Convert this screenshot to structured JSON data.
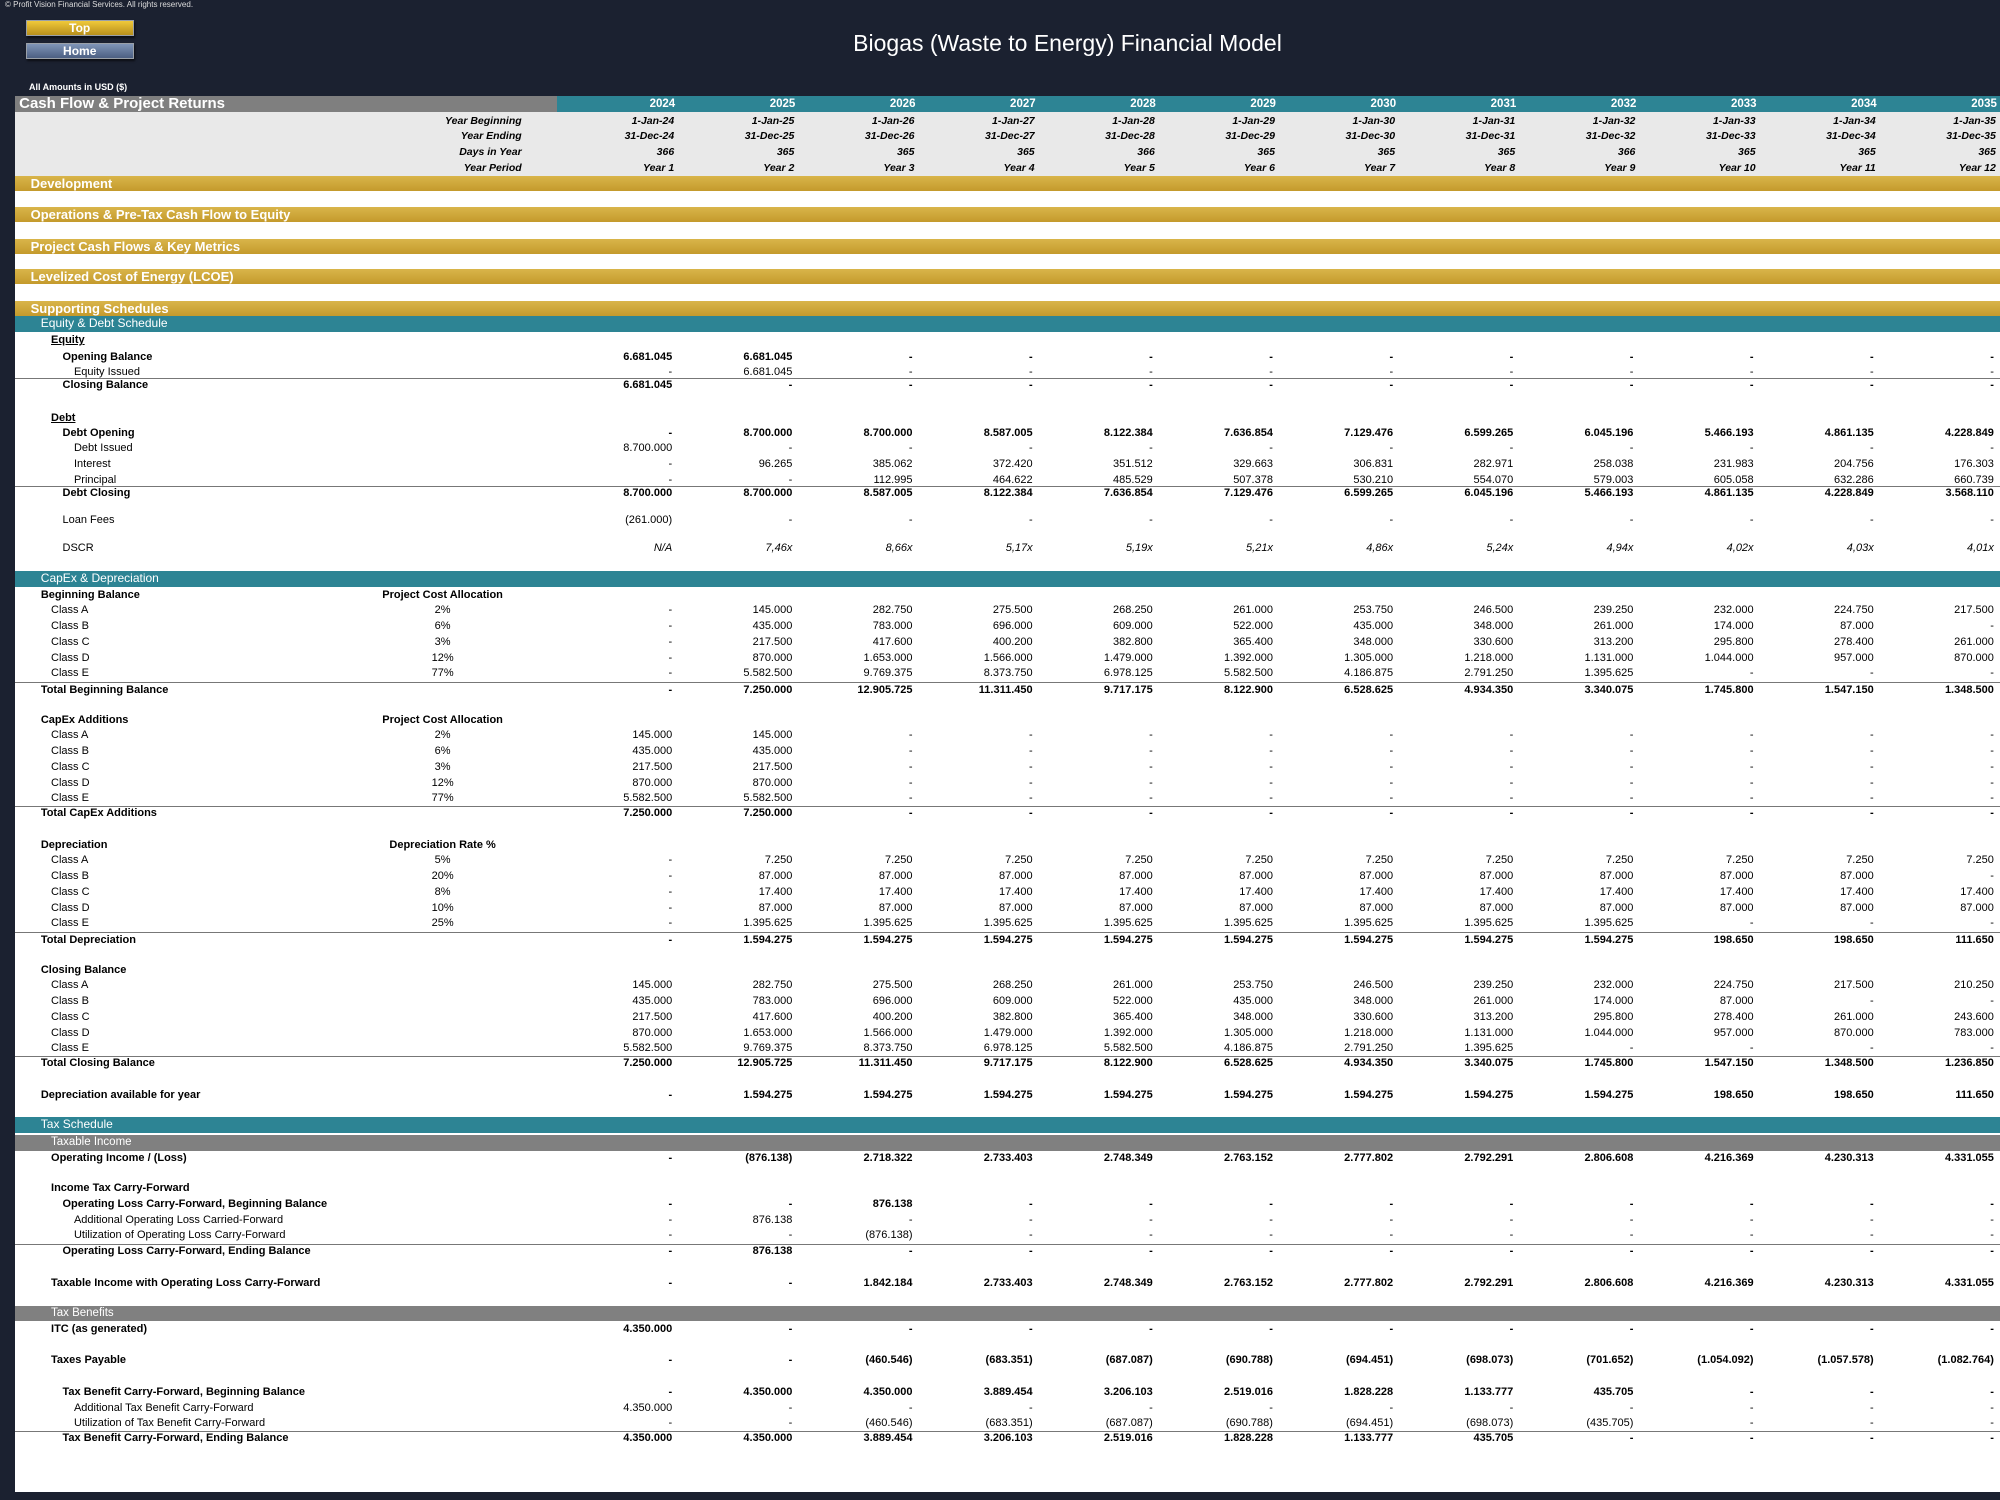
{
  "header": {
    "copyright": "© Profit Vision Financial Services. All rights reserved.",
    "buttons": [
      "Top",
      "Home"
    ],
    "title": "Biogas (Waste to Energy) Financial Model",
    "units": "All Amounts in USD ($)"
  },
  "table": {
    "title": "Cash Flow & Project Returns",
    "years": [
      "2024",
      "2025",
      "2026",
      "2027",
      "2028",
      "2029",
      "2030",
      "2031",
      "2032",
      "2033",
      "2034",
      "2035"
    ],
    "timeline": [
      {
        "label": "Year Beginning",
        "values": [
          "1-Jan-24",
          "1-Jan-25",
          "1-Jan-26",
          "1-Jan-27",
          "1-Jan-28",
          "1-Jan-29",
          "1-Jan-30",
          "1-Jan-31",
          "1-Jan-32",
          "1-Jan-33",
          "1-Jan-34",
          "1-Jan-35"
        ]
      },
      {
        "label": "Year Ending",
        "values": [
          "31-Dec-24",
          "31-Dec-25",
          "31-Dec-26",
          "31-Dec-27",
          "31-Dec-28",
          "31-Dec-29",
          "31-Dec-30",
          "31-Dec-31",
          "31-Dec-32",
          "31-Dec-33",
          "31-Dec-34",
          "31-Dec-35"
        ]
      },
      {
        "label": "Days in Year",
        "values": [
          "366",
          "365",
          "365",
          "365",
          "366",
          "365",
          "365",
          "365",
          "366",
          "365",
          "365",
          "365"
        ]
      },
      {
        "label": "Year Period",
        "values": [
          "Year 1",
          "Year 2",
          "Year 3",
          "Year 4",
          "Year 5",
          "Year 6",
          "Year 7",
          "Year 8",
          "Year 9",
          "Year 10",
          "Year 11",
          "Year 12"
        ]
      }
    ],
    "rows": [
      {
        "section": "Development"
      },
      {
        "section": "Operations & Pre-Tax Cash Flow to Equity"
      },
      {
        "section": "Project Cash Flows & Key Metrics"
      },
      {
        "section": "Levelized Cost of Energy (LCOE)"
      },
      {
        "section": "Supporting Schedules"
      },
      {
        "schedule": "Equity & Debt Schedule"
      },
      {
        "label": "Equity"
      },
      {
        "label": "Opening Balance",
        "values": [
          "6.681.045",
          "6.681.045",
          "-",
          "-",
          "-",
          "-",
          "-",
          "-",
          "-",
          "-",
          "-",
          "-"
        ]
      },
      {
        "label": "Equity Issued",
        "values": [
          "-",
          "6.681.045",
          "-",
          "-",
          "-",
          "-",
          "-",
          "-",
          "-",
          "-",
          "-",
          "-"
        ]
      },
      {
        "label": "Closing Balance",
        "values": [
          "6.681.045",
          "-",
          "-",
          "-",
          "-",
          "-",
          "-",
          "-",
          "-",
          "-",
          "-",
          "-"
        ]
      },
      {
        "label": "Debt"
      },
      {
        "label": "Debt Opening",
        "values": [
          "-",
          "8.700.000",
          "8.700.000",
          "8.587.005",
          "8.122.384",
          "7.636.854",
          "7.129.476",
          "6.599.265",
          "6.045.196",
          "5.466.193",
          "4.861.135",
          "4.228.849"
        ]
      },
      {
        "label": "Debt Issued",
        "values": [
          "8.700.000",
          "-",
          "-",
          "-",
          "-",
          "-",
          "-",
          "-",
          "-",
          "-",
          "-",
          "-"
        ]
      },
      {
        "label": "Interest",
        "values": [
          "-",
          "96.265",
          "385.062",
          "372.420",
          "351.512",
          "329.663",
          "306.831",
          "282.971",
          "258.038",
          "231.983",
          "204.756",
          "176.303"
        ]
      },
      {
        "label": "Principal",
        "values": [
          "-",
          "-",
          "112.995",
          "464.622",
          "485.529",
          "507.378",
          "530.210",
          "554.070",
          "579.003",
          "605.058",
          "632.286",
          "660.739"
        ]
      },
      {
        "label": "Debt Closing",
        "values": [
          "8.700.000",
          "8.700.000",
          "8.587.005",
          "8.122.384",
          "7.636.854",
          "7.129.476",
          "6.599.265",
          "6.045.196",
          "5.466.193",
          "4.861.135",
          "4.228.849",
          "3.568.110"
        ]
      },
      {
        "label": "Loan Fees",
        "values": [
          "(261.000)",
          "-",
          "-",
          "-",
          "-",
          "-",
          "-",
          "-",
          "-",
          "-",
          "-",
          "-"
        ]
      },
      {
        "label": "DSCR",
        "values": [
          "N/A",
          "7,46x",
          "8,66x",
          "5,17x",
          "5,19x",
          "5,21x",
          "4,86x",
          "5,24x",
          "4,94x",
          "4,02x",
          "4,03x",
          "4,01x"
        ]
      },
      {
        "schedule": "CapEx & Depreciation"
      },
      {
        "label": "Beginning Balance",
        "note": "Project Cost Allocation"
      },
      {
        "label": "Class A",
        "note": "2%",
        "values": [
          "-",
          "145.000",
          "282.750",
          "275.500",
          "268.250",
          "261.000",
          "253.750",
          "246.500",
          "239.250",
          "232.000",
          "224.750",
          "217.500"
        ]
      },
      {
        "label": "Class B",
        "note": "6%",
        "values": [
          "-",
          "435.000",
          "783.000",
          "696.000",
          "609.000",
          "522.000",
          "435.000",
          "348.000",
          "261.000",
          "174.000",
          "87.000",
          "-"
        ]
      },
      {
        "label": "Class C",
        "note": "3%",
        "values": [
          "-",
          "217.500",
          "417.600",
          "400.200",
          "382.800",
          "365.400",
          "348.000",
          "330.600",
          "313.200",
          "295.800",
          "278.400",
          "261.000"
        ]
      },
      {
        "label": "Class D",
        "note": "12%",
        "values": [
          "-",
          "870.000",
          "1.653.000",
          "1.566.000",
          "1.479.000",
          "1.392.000",
          "1.305.000",
          "1.218.000",
          "1.131.000",
          "1.044.000",
          "957.000",
          "870.000"
        ]
      },
      {
        "label": "Class E",
        "note": "77%",
        "values": [
          "-",
          "5.582.500",
          "9.769.375",
          "8.373.750",
          "6.978.125",
          "5.582.500",
          "4.186.875",
          "2.791.250",
          "1.395.625",
          "-",
          "-",
          "-"
        ]
      },
      {
        "label": "Total Beginning Balance",
        "values": [
          "-",
          "7.250.000",
          "12.905.725",
          "11.311.450",
          "9.717.175",
          "8.122.900",
          "6.528.625",
          "4.934.350",
          "3.340.075",
          "1.745.800",
          "1.547.150",
          "1.348.500"
        ]
      },
      {
        "label": "CapEx Additions",
        "note": "Project Cost Allocation"
      },
      {
        "label": "Class A",
        "note": "2%",
        "values": [
          "145.000",
          "145.000",
          "-",
          "-",
          "-",
          "-",
          "-",
          "-",
          "-",
          "-",
          "-",
          "-"
        ]
      },
      {
        "label": "Class B",
        "note": "6%",
        "values": [
          "435.000",
          "435.000",
          "-",
          "-",
          "-",
          "-",
          "-",
          "-",
          "-",
          "-",
          "-",
          "-"
        ]
      },
      {
        "label": "Class C",
        "note": "3%",
        "values": [
          "217.500",
          "217.500",
          "-",
          "-",
          "-",
          "-",
          "-",
          "-",
          "-",
          "-",
          "-",
          "-"
        ]
      },
      {
        "label": "Class D",
        "note": "12%",
        "values": [
          "870.000",
          "870.000",
          "-",
          "-",
          "-",
          "-",
          "-",
          "-",
          "-",
          "-",
          "-",
          "-"
        ]
      },
      {
        "label": "Class E",
        "note": "77%",
        "values": [
          "5.582.500",
          "5.582.500",
          "-",
          "-",
          "-",
          "-",
          "-",
          "-",
          "-",
          "-",
          "-",
          "-"
        ]
      },
      {
        "label": "Total CapEx Additions",
        "values": [
          "7.250.000",
          "7.250.000",
          "-",
          "-",
          "-",
          "-",
          "-",
          "-",
          "-",
          "-",
          "-",
          "-"
        ]
      },
      {
        "label": "Depreciation",
        "note": "Depreciation Rate %"
      },
      {
        "label": "Class A",
        "note": "5%",
        "values": [
          "-",
          "7.250",
          "7.250",
          "7.250",
          "7.250",
          "7.250",
          "7.250",
          "7.250",
          "7.250",
          "7.250",
          "7.250",
          "7.250"
        ]
      },
      {
        "label": "Class B",
        "note": "20%",
        "values": [
          "-",
          "87.000",
          "87.000",
          "87.000",
          "87.000",
          "87.000",
          "87.000",
          "87.000",
          "87.000",
          "87.000",
          "87.000",
          "-"
        ]
      },
      {
        "label": "Class C",
        "note": "8%",
        "values": [
          "-",
          "17.400",
          "17.400",
          "17.400",
          "17.400",
          "17.400",
          "17.400",
          "17.400",
          "17.400",
          "17.400",
          "17.400",
          "17.400"
        ]
      },
      {
        "label": "Class D",
        "note": "10%",
        "values": [
          "-",
          "87.000",
          "87.000",
          "87.000",
          "87.000",
          "87.000",
          "87.000",
          "87.000",
          "87.000",
          "87.000",
          "87.000",
          "87.000"
        ]
      },
      {
        "label": "Class E",
        "note": "25%",
        "values": [
          "-",
          "1.395.625",
          "1.395.625",
          "1.395.625",
          "1.395.625",
          "1.395.625",
          "1.395.625",
          "1.395.625",
          "1.395.625",
          "-",
          "-",
          "-"
        ]
      },
      {
        "label": "Total Depreciation",
        "values": [
          "-",
          "1.594.275",
          "1.594.275",
          "1.594.275",
          "1.594.275",
          "1.594.275",
          "1.594.275",
          "1.594.275",
          "1.594.275",
          "198.650",
          "198.650",
          "111.650"
        ]
      },
      {
        "label": "Closing Balance"
      },
      {
        "label": "Class A",
        "values": [
          "145.000",
          "282.750",
          "275.500",
          "268.250",
          "261.000",
          "253.750",
          "246.500",
          "239.250",
          "232.000",
          "224.750",
          "217.500",
          "210.250"
        ]
      },
      {
        "label": "Class B",
        "values": [
          "435.000",
          "783.000",
          "696.000",
          "609.000",
          "522.000",
          "435.000",
          "348.000",
          "261.000",
          "174.000",
          "87.000",
          "-",
          "-"
        ]
      },
      {
        "label": "Class C",
        "values": [
          "217.500",
          "417.600",
          "400.200",
          "382.800",
          "365.400",
          "348.000",
          "330.600",
          "313.200",
          "295.800",
          "278.400",
          "261.000",
          "243.600"
        ]
      },
      {
        "label": "Class D",
        "values": [
          "870.000",
          "1.653.000",
          "1.566.000",
          "1.479.000",
          "1.392.000",
          "1.305.000",
          "1.218.000",
          "1.131.000",
          "1.044.000",
          "957.000",
          "870.000",
          "783.000"
        ]
      },
      {
        "label": "Class E",
        "values": [
          "5.582.500",
          "9.769.375",
          "8.373.750",
          "6.978.125",
          "5.582.500",
          "4.186.875",
          "2.791.250",
          "1.395.625",
          "-",
          "-",
          "-",
          "-"
        ]
      },
      {
        "label": "Total Closing Balance",
        "values": [
          "7.250.000",
          "12.905.725",
          "11.311.450",
          "9.717.175",
          "8.122.900",
          "6.528.625",
          "4.934.350",
          "3.340.075",
          "1.745.800",
          "1.547.150",
          "1.348.500",
          "1.236.850"
        ]
      },
      {
        "label": "Depreciation available for year",
        "values": [
          "-",
          "1.594.275",
          "1.594.275",
          "1.594.275",
          "1.594.275",
          "1.594.275",
          "1.594.275",
          "1.594.275",
          "1.594.275",
          "198.650",
          "198.650",
          "111.650"
        ]
      },
      {
        "schedule": "Tax Schedule"
      },
      {
        "group": "Taxable Income"
      },
      {
        "label": "Operating Income / (Loss)",
        "values": [
          "-",
          "(876.138)",
          "2.718.322",
          "2.733.403",
          "2.748.349",
          "2.763.152",
          "2.777.802",
          "2.792.291",
          "2.806.608",
          "4.216.369",
          "4.230.313",
          "4.331.055"
        ]
      },
      {
        "label": "Income Tax Carry-Forward"
      },
      {
        "label": "Operating Loss Carry-Forward, Beginning Balance",
        "values": [
          "-",
          "-",
          "876.138",
          "-",
          "-",
          "-",
          "-",
          "-",
          "-",
          "-",
          "-",
          "-"
        ]
      },
      {
        "label": "Additional Operating Loss Carried-Forward",
        "values": [
          "-",
          "876.138",
          "-",
          "-",
          "-",
          "-",
          "-",
          "-",
          "-",
          "-",
          "-",
          "-"
        ]
      },
      {
        "label": "Utilization of Operating Loss Carry-Forward",
        "values": [
          "-",
          "-",
          "(876.138)",
          "-",
          "-",
          "-",
          "-",
          "-",
          "-",
          "-",
          "-",
          "-"
        ]
      },
      {
        "label": "Operating Loss Carry-Forward, Ending Balance",
        "values": [
          "-",
          "876.138",
          "-",
          "-",
          "-",
          "-",
          "-",
          "-",
          "-",
          "-",
          "-",
          "-"
        ]
      },
      {
        "label": "Taxable Income with Operating Loss Carry-Forward",
        "values": [
          "-",
          "-",
          "1.842.184",
          "2.733.403",
          "2.748.349",
          "2.763.152",
          "2.777.802",
          "2.792.291",
          "2.806.608",
          "4.216.369",
          "4.230.313",
          "4.331.055"
        ]
      },
      {
        "group": "Tax Benefits"
      },
      {
        "label": "ITC (as generated)",
        "values": [
          "4.350.000",
          "-",
          "-",
          "-",
          "-",
          "-",
          "-",
          "-",
          "-",
          "-",
          "-",
          "-"
        ]
      },
      {
        "label": "Taxes Payable",
        "values": [
          "-",
          "-",
          "(460.546)",
          "(683.351)",
          "(687.087)",
          "(690.788)",
          "(694.451)",
          "(698.073)",
          "(701.652)",
          "(1.054.092)",
          "(1.057.578)",
          "(1.082.764)"
        ]
      },
      {
        "label": "Tax Benefit Carry-Forward, Beginning Balance",
        "values": [
          "-",
          "4.350.000",
          "4.350.000",
          "3.889.454",
          "3.206.103",
          "2.519.016",
          "1.828.228",
          "1.133.777",
          "435.705",
          "-",
          "-",
          "-"
        ]
      },
      {
        "label": "Additional Tax Benefit Carry-Forward",
        "values": [
          "4.350.000",
          "-",
          "-",
          "-",
          "-",
          "-",
          "-",
          "-",
          "-",
          "-",
          "-",
          "-"
        ]
      },
      {
        "label": "Utilization of Tax Benefit Carry-Forward",
        "values": [
          "-",
          "-",
          "(460.546)",
          "(683.351)",
          "(687.087)",
          "(690.788)",
          "(694.451)",
          "(698.073)",
          "(435.705)",
          "-",
          "-",
          "-"
        ]
      },
      {
        "label": "Tax Benefit Carry-Forward, Ending Balance",
        "values": [
          "4.350.000",
          "4.350.000",
          "3.889.454",
          "3.206.103",
          "2.519.016",
          "1.828.228",
          "1.133.777",
          "435.705",
          "-",
          "-",
          "-",
          "-"
        ]
      }
    ]
  }
}
